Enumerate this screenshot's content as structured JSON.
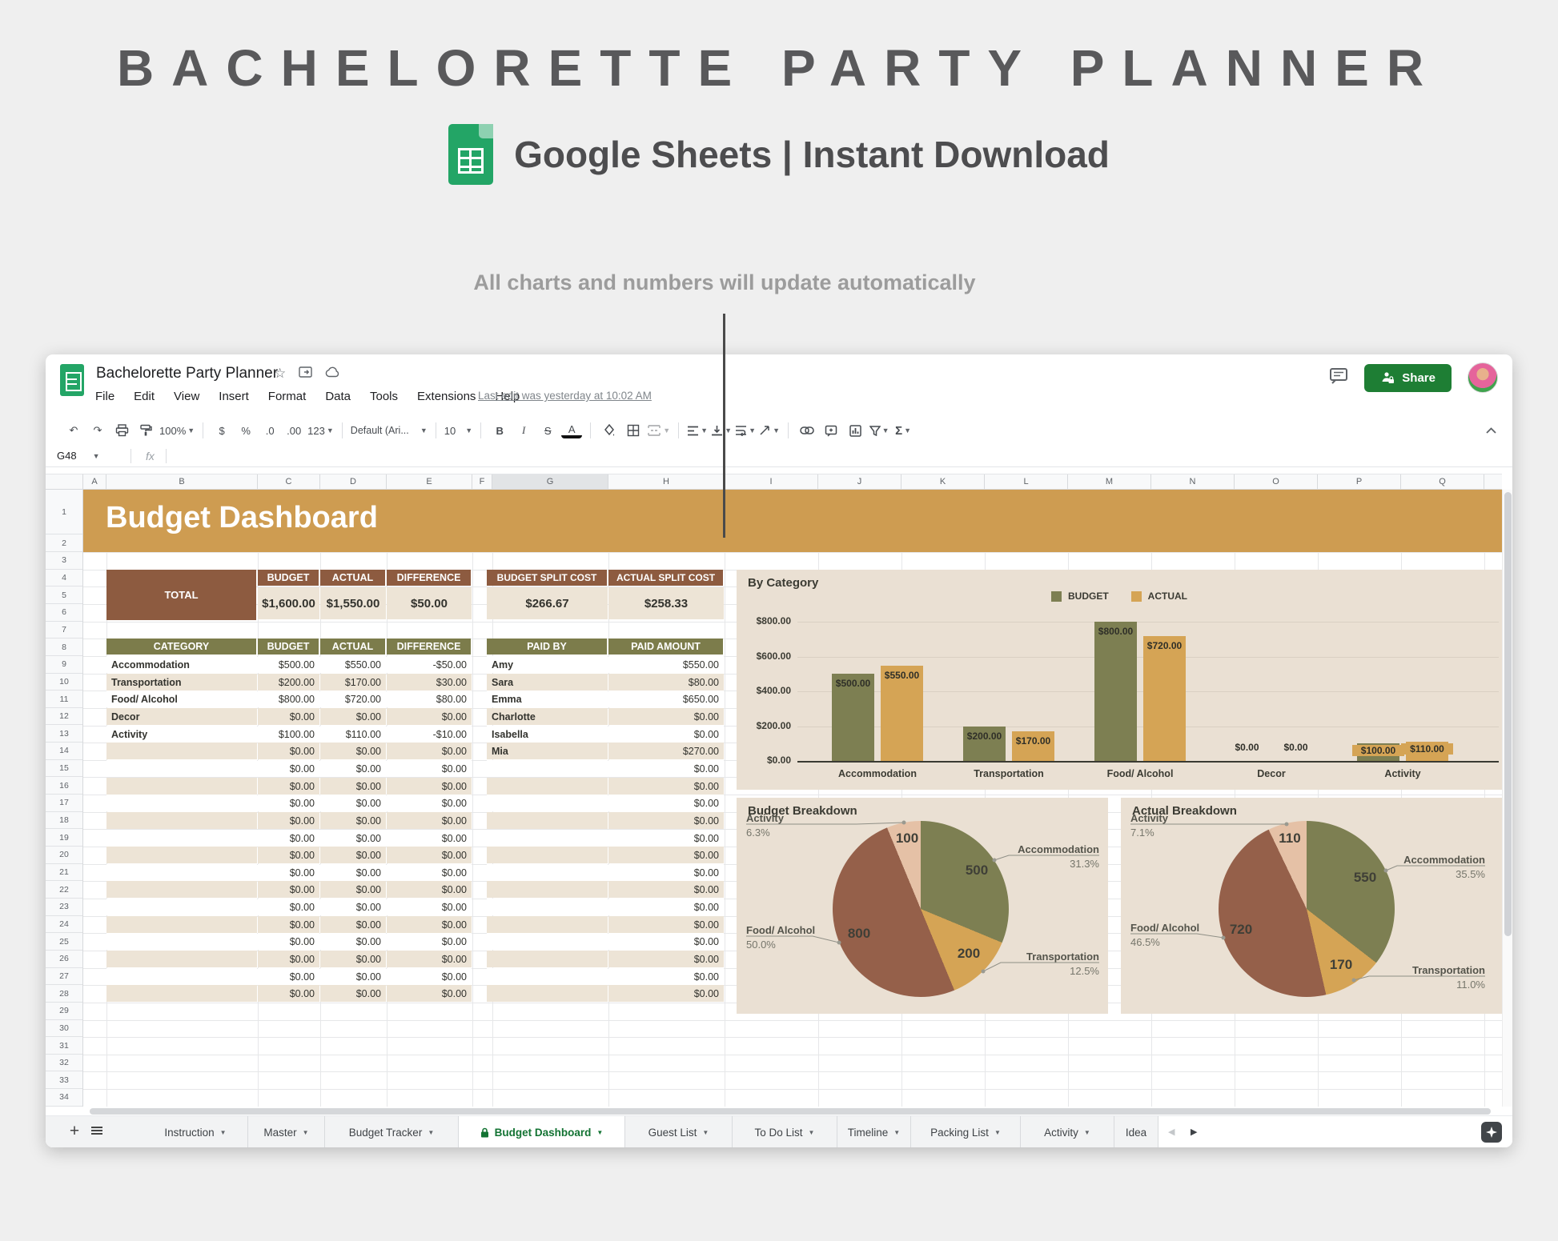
{
  "hero": {
    "title": "BACHELORETTE PARTY PLANNER",
    "subtitle": "Google Sheets | Instant Download",
    "annotation": "All charts and numbers will update automatically"
  },
  "doc": {
    "title": "Bachelorette Party Planner",
    "menus": [
      "File",
      "Edit",
      "View",
      "Insert",
      "Format",
      "Data",
      "Tools",
      "Extensions",
      "Help"
    ],
    "last_edit": "Last edit was yesterday at 10:02 AM",
    "share": "Share"
  },
  "toolbar": {
    "zoom": "100%",
    "currency": "$",
    "percent": "%",
    "decrease_decimals": ".0",
    "increase_decimals": ".00",
    "more_formats": "123",
    "font": "Default (Ari...",
    "font_size": "10",
    "bold": "B",
    "italic": "I",
    "strikethrough": "S",
    "text_color": "A",
    "functions": "Σ"
  },
  "formula": {
    "name_box": "G48",
    "fx": "fx"
  },
  "grid": {
    "columns": [
      "A",
      "B",
      "C",
      "D",
      "E",
      "F",
      "G",
      "H",
      "I",
      "J",
      "K",
      "L",
      "M",
      "N",
      "O",
      "P",
      "Q"
    ],
    "selected_column": "G",
    "row_first": 1,
    "row_last": 34
  },
  "banner": {
    "title": "Budget Dashboard"
  },
  "tables": {
    "total": {
      "label": "TOTAL",
      "headers": [
        "BUDGET",
        "ACTUAL",
        "DIFFERENCE"
      ],
      "values": [
        "$1,600.00",
        "$1,550.00",
        "$50.00"
      ]
    },
    "category": {
      "headers": [
        "CATEGORY",
        "BUDGET",
        "ACTUAL",
        "DIFFERENCE"
      ],
      "rows": [
        [
          "Accommodation",
          "$500.00",
          "$550.00",
          "-$50.00"
        ],
        [
          "Transportation",
          "$200.00",
          "$170.00",
          "$30.00"
        ],
        [
          "Food/ Alcohol",
          "$800.00",
          "$720.00",
          "$80.00"
        ],
        [
          "Decor",
          "$0.00",
          "$0.00",
          "$0.00"
        ],
        [
          "Activity",
          "$100.00",
          "$110.00",
          "-$10.00"
        ]
      ],
      "empty_row": [
        "",
        "$0.00",
        "$0.00",
        "$0.00"
      ],
      "empty_count": 15
    },
    "split": {
      "headers": [
        "BUDGET SPLIT COST",
        "ACTUAL SPLIT COST"
      ],
      "values": [
        "$266.67",
        "$258.33"
      ]
    },
    "paid": {
      "headers": [
        "PAID BY",
        "PAID AMOUNT"
      ],
      "rows": [
        [
          "Amy",
          "$550.00"
        ],
        [
          "Sara",
          "$80.00"
        ],
        [
          "Emma",
          "$650.00"
        ],
        [
          "Charlotte",
          "$0.00"
        ],
        [
          "Isabella",
          "$0.00"
        ],
        [
          "Mia",
          "$270.00"
        ]
      ],
      "empty_row": [
        "",
        "$0.00"
      ],
      "empty_count": 14
    }
  },
  "chart_data": [
    {
      "type": "bar",
      "title": "By Category",
      "categories": [
        "Accommodation",
        "Transportation",
        "Food/ Alcohol",
        "Decor",
        "Activity"
      ],
      "series": [
        {
          "name": "BUDGET",
          "values": [
            500,
            200,
            800,
            0,
            100
          ],
          "labels": [
            "$500.00",
            "$200.00",
            "$800.00",
            "$0.00",
            "$100.00"
          ],
          "color": "#7D7F52"
        },
        {
          "name": "ACTUAL",
          "values": [
            550,
            170,
            720,
            0,
            110
          ],
          "labels": [
            "$550.00",
            "$170.00",
            "$720.00",
            "$0.00",
            "$110.00"
          ],
          "color": "#D5A455"
        }
      ],
      "y_ticks": [
        "$0.00",
        "$200.00",
        "$400.00",
        "$600.00",
        "$800.00"
      ],
      "ylim": [
        0,
        800
      ],
      "grid": true,
      "legend_position": "top"
    },
    {
      "type": "pie",
      "title": "Budget Breakdown",
      "slices": [
        {
          "label": "Accommodation",
          "value": 500,
          "pct": "31.3%",
          "color": "#7D7F52"
        },
        {
          "label": "Transportation",
          "value": 200,
          "pct": "12.5%",
          "color": "#D5A455"
        },
        {
          "label": "Food/ Alcohol",
          "value": 800,
          "pct": "50.0%",
          "color": "#95604A"
        },
        {
          "label": "Activity",
          "value": 100,
          "pct": "6.3%",
          "color": "#E5C1A6"
        }
      ]
    },
    {
      "type": "pie",
      "title": "Actual Breakdown",
      "slices": [
        {
          "label": "Accommodation",
          "value": 550,
          "pct": "35.5%",
          "color": "#7D7F52"
        },
        {
          "label": "Transportation",
          "value": 170,
          "pct": "11.0%",
          "color": "#D5A455"
        },
        {
          "label": "Food/ Alcohol",
          "value": 720,
          "pct": "46.5%",
          "color": "#95604A"
        },
        {
          "label": "Activity",
          "value": 110,
          "pct": "7.1%",
          "color": "#E5C1A6"
        }
      ]
    }
  ],
  "tabs": {
    "items": [
      {
        "label": "Instruction"
      },
      {
        "label": "Master"
      },
      {
        "label": "Budget Tracker"
      },
      {
        "label": "Budget Dashboard",
        "active": true,
        "locked": true
      },
      {
        "label": "Guest List"
      },
      {
        "label": "To Do List"
      },
      {
        "label": "Timeline"
      },
      {
        "label": "Packing List"
      },
      {
        "label": "Activity"
      },
      {
        "label": "Idea",
        "clipped": true
      }
    ]
  },
  "colors": {
    "banner_gold": "#CE9C51",
    "header_brown": "#8D5B40",
    "header_olive": "#7C7C4B",
    "cell_beige": "#EDE4D6",
    "chart_bg": "#EAE0D3",
    "bar_budget": "#7D7F52",
    "bar_actual": "#D5A455",
    "pie_brown": "#95604A",
    "pie_pink": "#E5C1A6",
    "share_green": "#1E7E34",
    "active_tab_green": "#137333"
  }
}
